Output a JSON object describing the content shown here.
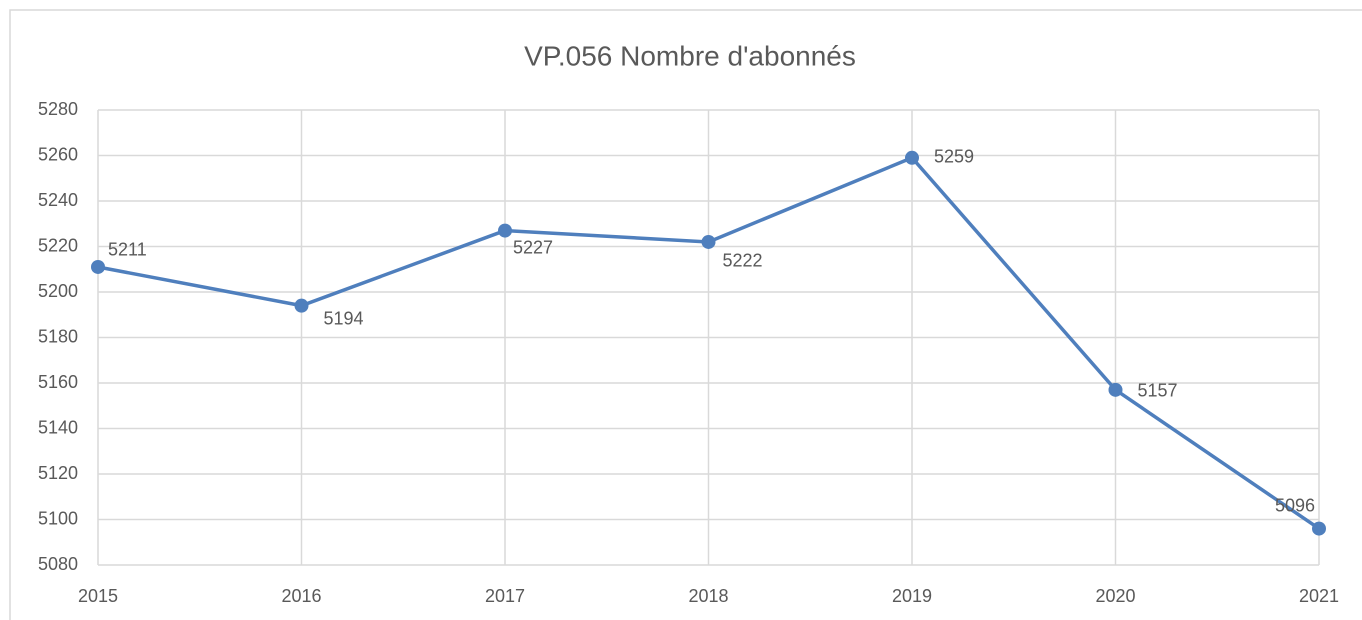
{
  "chart_data": {
    "type": "line",
    "title": "VP.056 Nombre d'abonnés",
    "x": [
      2015,
      2016,
      2017,
      2018,
      2019,
      2020,
      2021
    ],
    "series": [
      {
        "color": "#4f7fbd",
        "values": [
          5211,
          5194,
          5227,
          5222,
          5259,
          5157,
          5096
        ]
      }
    ],
    "xlim": [
      2015,
      2021
    ],
    "xticks": [
      2015,
      2016,
      2017,
      2018,
      2019,
      2020,
      2021
    ],
    "ylim": [
      5080,
      5280
    ],
    "yticks": [
      5080,
      5100,
      5120,
      5140,
      5160,
      5180,
      5200,
      5220,
      5240,
      5260,
      5280
    ],
    "grid": true
  }
}
